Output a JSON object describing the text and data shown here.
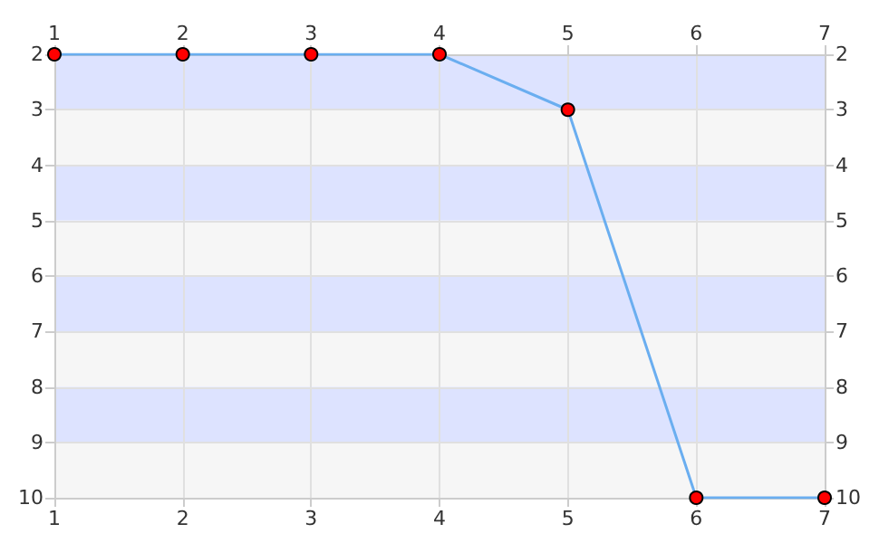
{
  "chart_data": {
    "type": "line",
    "x": [
      1,
      2,
      3,
      4,
      5,
      6,
      7
    ],
    "series": [
      {
        "color": "#6aaef0",
        "values": [
          2,
          2,
          2,
          2,
          3,
          10,
          10
        ]
      }
    ],
    "xlim": [
      1,
      7
    ],
    "xticks": [
      1,
      2,
      3,
      4,
      5,
      6,
      7
    ],
    "x2lim": [
      1,
      7
    ],
    "x2ticks": [
      1,
      2,
      3,
      4,
      5,
      6,
      7
    ],
    "ylim": [
      10,
      2
    ],
    "yticks": [
      2,
      3,
      4,
      5,
      6,
      7,
      8,
      9,
      10
    ],
    "y2lim": [
      10,
      2
    ],
    "y2ticks": [
      2,
      3,
      4,
      5,
      6,
      7,
      8,
      9,
      10
    ],
    "grid": true,
    "marker": "circle",
    "line_style": "solid"
  }
}
